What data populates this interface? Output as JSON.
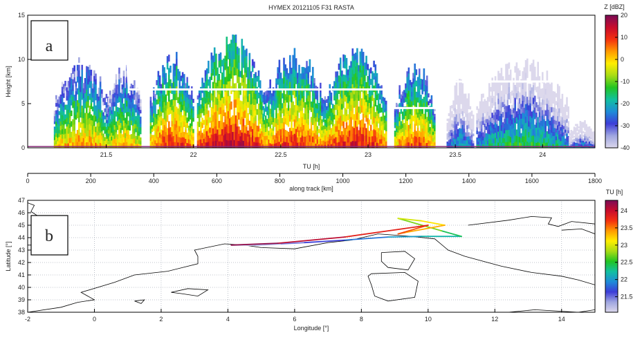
{
  "colors": {
    "axis": "#000000",
    "grid": "#aab0bb",
    "track": "#ffffff",
    "coast": "#000000",
    "panel_border": "#000000"
  },
  "chart_data": [
    {
      "type": "heatmap",
      "panel_label": "a",
      "title": "HYMEX 20121105 F31 RASTA",
      "xlabel": "TU [h]",
      "ylabel": "Height [km]",
      "xlim": [
        21.05,
        24.3
      ],
      "ylim": [
        0,
        15
      ],
      "x_ticks": [
        "21.5",
        "22",
        "22.5",
        "23",
        "23.5",
        "24"
      ],
      "y_ticks": [
        "0",
        "5",
        "10",
        "15"
      ],
      "secondary_xaxis": {
        "label": "along track [km]",
        "lim": [
          0,
          1800
        ],
        "ticks": [
          "0",
          "200",
          "400",
          "600",
          "800",
          "1000",
          "1200",
          "1400",
          "1600",
          "1800"
        ]
      },
      "colorbar": {
        "label": "Z [dBZ]",
        "lim": [
          -40,
          20
        ],
        "ticks": [
          "20",
          "10",
          "0",
          "-10",
          "-20",
          "-30",
          "-40"
        ],
        "colormap": [
          "#dcd8ec",
          "#9fa6e0",
          "#3d3dd8",
          "#1e8cd8",
          "#12c0a0",
          "#22c422",
          "#a8dc14",
          "#ffee00",
          "#ff9a00",
          "#f43010",
          "#c80c2c",
          "#7a0c56"
        ]
      },
      "flight_altitude": {
        "tu": [
          21.08,
          21.25,
          21.62,
          21.63,
          23.12,
          23.15,
          23.4,
          23.43,
          24.15,
          24.25
        ],
        "height_km": [
          5.0,
          9.5,
          9.5,
          6.6,
          6.6,
          4.5,
          4.5,
          7.5,
          7.5,
          4.2
        ]
      },
      "reflectivity_cells": [
        {
          "t0": 21.2,
          "t1": 21.52,
          "top": 9.0,
          "zmax": 6
        },
        {
          "t0": 21.5,
          "t1": 21.7,
          "top": 8.5,
          "zmax": 4
        },
        {
          "t0": 21.75,
          "t1": 22.0,
          "top": 9.8,
          "zmax": 12
        },
        {
          "t0": 22.02,
          "t1": 22.4,
          "top": 11.5,
          "zmax": 16
        },
        {
          "t0": 22.4,
          "t1": 22.75,
          "top": 10.0,
          "zmax": 12
        },
        {
          "t0": 22.75,
          "t1": 23.1,
          "top": 10.5,
          "zmax": 14
        },
        {
          "t0": 23.15,
          "t1": 23.38,
          "top": 8.8,
          "zmax": 10
        },
        {
          "t0": 23.45,
          "t1": 23.6,
          "top": 7.0,
          "zmax": -18
        },
        {
          "t0": 23.62,
          "t1": 24.15,
          "top": 9.0,
          "zmax": -12
        },
        {
          "t0": 24.15,
          "t1": 24.3,
          "top": 3.0,
          "zmax": -20
        }
      ]
    },
    {
      "type": "line",
      "panel_label": "b",
      "title": "",
      "xlabel": "Longitude [°]",
      "ylabel": "Latitude [°]",
      "xlim": [
        -2,
        15
      ],
      "ylim": [
        38,
        47
      ],
      "x_ticks": [
        "-2",
        "0",
        "2",
        "4",
        "6",
        "8",
        "10",
        "12",
        "14"
      ],
      "y_ticks": [
        "38",
        "39",
        "40",
        "41",
        "42",
        "43",
        "44",
        "45",
        "46",
        "47"
      ],
      "grid": true,
      "colorbar": {
        "label": "TU [h]",
        "lim": [
          21.05,
          24.3
        ],
        "ticks": [
          "24",
          "23.5",
          "23",
          "22.5",
          "22",
          "21.5"
        ],
        "colormap": [
          "#dcd8ec",
          "#9fa6e0",
          "#3d3dd8",
          "#1e8cd8",
          "#12c0a0",
          "#22c422",
          "#a8dc14",
          "#ffee00",
          "#ff9a00",
          "#f43010",
          "#c80c2c",
          "#7a0c56"
        ]
      },
      "flight_track": {
        "lon": [
          4.1,
          4.8,
          5.6,
          6.3,
          7.5,
          8.8,
          9.8,
          11.0,
          10.4,
          9.1,
          9.8,
          10.5,
          9.3,
          9.1,
          10.0,
          7.5,
          5.5,
          4.1
        ],
        "lat": [
          43.4,
          43.38,
          43.5,
          43.6,
          43.8,
          44.05,
          44.1,
          44.1,
          44.55,
          45.55,
          45.35,
          45.0,
          44.4,
          44.3,
          45.0,
          44.05,
          43.55,
          43.4
        ],
        "tu": [
          21.1,
          21.2,
          21.4,
          21.55,
          21.75,
          21.95,
          22.1,
          22.25,
          22.55,
          22.9,
          23.05,
          23.25,
          23.45,
          23.55,
          23.7,
          23.95,
          24.15,
          24.28
        ]
      },
      "coastlines": [
        [
          [
            -2,
            46.8
          ],
          [
            -1.8,
            46.6
          ],
          [
            -1.9,
            46.1
          ],
          [
            -1.5,
            45.4
          ],
          [
            -1.4,
            44.5
          ],
          [
            -1.5,
            43.7
          ],
          [
            -1.8,
            43.4
          ],
          [
            -2,
            43.4
          ]
        ],
        [
          [
            -2,
            38.0
          ],
          [
            -1,
            38.4
          ],
          [
            -0.5,
            38.8
          ],
          [
            0,
            39.0
          ],
          [
            -0.4,
            39.6
          ],
          [
            0.6,
            40.4
          ],
          [
            1.2,
            41.0
          ],
          [
            2.2,
            41.3
          ],
          [
            3.1,
            41.9
          ],
          [
            3.1,
            42.5
          ],
          [
            3.0,
            43.0
          ],
          [
            3.9,
            43.5
          ],
          [
            4.5,
            43.4
          ],
          [
            5.0,
            43.2
          ],
          [
            6.0,
            43.1
          ],
          [
            7.0,
            43.6
          ],
          [
            7.7,
            43.8
          ],
          [
            8.5,
            44.3
          ],
          [
            9.5,
            44.1
          ],
          [
            10.2,
            43.9
          ],
          [
            10.6,
            43.0
          ],
          [
            11.1,
            42.5
          ],
          [
            12.2,
            41.7
          ],
          [
            13.1,
            41.2
          ],
          [
            14.0,
            40.9
          ],
          [
            14.5,
            40.6
          ],
          [
            15,
            40.2
          ]
        ],
        [
          [
            11.2,
            45.0
          ],
          [
            12.4,
            45.4
          ],
          [
            13.1,
            45.7
          ],
          [
            13.7,
            45.6
          ],
          [
            13.6,
            45.1
          ],
          [
            13.9,
            44.9
          ],
          [
            14.3,
            45.3
          ],
          [
            15,
            45.1
          ]
        ],
        [
          [
            15,
            44.3
          ],
          [
            14.6,
            44.7
          ],
          [
            14.0,
            44.6
          ]
        ],
        [
          [
            8.6,
            42.8
          ],
          [
            9.3,
            42.9
          ],
          [
            9.6,
            42.3
          ],
          [
            9.4,
            41.4
          ],
          [
            8.8,
            41.6
          ],
          [
            8.6,
            42.1
          ],
          [
            8.6,
            42.8
          ]
        ],
        [
          [
            8.3,
            41.1
          ],
          [
            9.3,
            41.2
          ],
          [
            9.7,
            40.5
          ],
          [
            9.6,
            39.2
          ],
          [
            8.8,
            38.9
          ],
          [
            8.4,
            39.3
          ],
          [
            8.3,
            40.2
          ],
          [
            8.2,
            40.9
          ],
          [
            8.3,
            41.1
          ]
        ],
        [
          [
            2.3,
            39.6
          ],
          [
            2.8,
            39.9
          ],
          [
            3.4,
            39.8
          ],
          [
            3.1,
            39.3
          ],
          [
            2.6,
            39.5
          ],
          [
            2.3,
            39.6
          ]
        ],
        [
          [
            1.2,
            38.9
          ],
          [
            1.5,
            39.0
          ],
          [
            1.4,
            38.7
          ],
          [
            1.2,
            38.9
          ]
        ],
        [
          [
            12.4,
            38.0
          ],
          [
            13.2,
            38.2
          ],
          [
            14.5,
            38.0
          ],
          [
            15,
            38.2
          ]
        ]
      ]
    }
  ]
}
